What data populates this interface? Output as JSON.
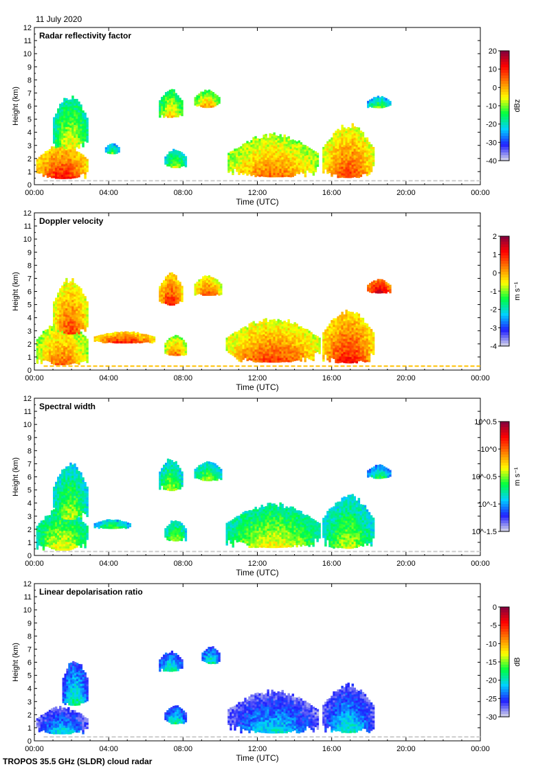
{
  "date": "11 July 2020",
  "footer": "TROPOS 35.5 GHz (SLDR) cloud radar",
  "chart_data": {
    "type": "heatmap",
    "xlabel": "Time (UTC)",
    "ylabel": "Height (km)",
    "xlim": [
      0,
      24
    ],
    "ylim": [
      0,
      12
    ],
    "x_ticks": [
      "00:00",
      "04:00",
      "08:00",
      "12:00",
      "16:00",
      "20:00",
      "00:00"
    ],
    "y_ticks": [
      "0",
      "1",
      "2",
      "3",
      "4",
      "5",
      "6",
      "7",
      "8",
      "9",
      "10",
      "11",
      "12"
    ],
    "panels": [
      {
        "title": "Radar reflectivity factor",
        "colorbar": {
          "unit": "dBz",
          "range": [
            -40,
            20
          ],
          "ticks": [
            "20",
            "10",
            "0",
            "-10",
            "-20",
            "-30",
            "-40"
          ]
        },
        "colors": [
          "#d8d8e8",
          "#2020ff",
          "#00d0ff",
          "#00ff40",
          "#ffff00",
          "#ff8000",
          "#ff0000",
          "#800040"
        ],
        "clouds": [
          {
            "t0": 0.1,
            "t1": 2.9,
            "h0": 0.3,
            "h1": 3.2,
            "v": 0.6
          },
          {
            "t0": 1.0,
            "t1": 2.9,
            "h0": 2.5,
            "h1": 7.0,
            "v": 0.35
          },
          {
            "t0": 3.8,
            "t1": 4.6,
            "h0": 2.3,
            "h1": 3.2,
            "v": 0.25
          },
          {
            "t0": 6.7,
            "t1": 8.0,
            "h0": 5.0,
            "h1": 7.4,
            "v": 0.4
          },
          {
            "t0": 7.0,
            "t1": 8.2,
            "h0": 1.2,
            "h1": 2.8,
            "v": 0.3
          },
          {
            "t0": 8.6,
            "t1": 10.0,
            "h0": 5.8,
            "h1": 7.3,
            "v": 0.45
          },
          {
            "t0": 10.4,
            "t1": 15.3,
            "h0": 0.4,
            "h1": 4.0,
            "v": 0.5
          },
          {
            "t0": 15.5,
            "t1": 18.3,
            "h0": 0.3,
            "h1": 4.8,
            "v": 0.55
          },
          {
            "t0": 17.9,
            "t1": 19.2,
            "h0": 5.8,
            "h1": 6.8,
            "v": 0.25
          }
        ],
        "ground_clutter": true
      },
      {
        "title": "Doppler velocity",
        "colorbar": {
          "unit": "m s⁻¹",
          "range": [
            -4,
            2
          ],
          "ticks": [
            "2",
            "1",
            "0",
            "-1",
            "-2",
            "-3",
            "-4"
          ]
        },
        "colors": [
          "#d8d8e8",
          "#2020ff",
          "#00d0ff",
          "#00ff40",
          "#ffff00",
          "#ff8000",
          "#ff0000",
          "#800040"
        ],
        "clouds": [
          {
            "t0": 0.1,
            "t1": 2.9,
            "h0": 0.2,
            "h1": 4.0,
            "v": 0.5
          },
          {
            "t0": 1.0,
            "t1": 2.9,
            "h0": 2.5,
            "h1": 7.2,
            "v": 0.55
          },
          {
            "t0": 3.2,
            "t1": 6.5,
            "h0": 2.0,
            "h1": 3.0,
            "v": 0.6
          },
          {
            "t0": 6.7,
            "t1": 8.0,
            "h0": 4.8,
            "h1": 7.5,
            "v": 0.6
          },
          {
            "t0": 7.0,
            "t1": 8.2,
            "h0": 1.0,
            "h1": 2.8,
            "v": 0.5
          },
          {
            "t0": 8.6,
            "t1": 10.1,
            "h0": 5.6,
            "h1": 7.3,
            "v": 0.55
          },
          {
            "t0": 10.3,
            "t1": 15.4,
            "h0": 0.4,
            "h1": 4.1,
            "v": 0.55
          },
          {
            "t0": 15.5,
            "t1": 18.3,
            "h0": 0.3,
            "h1": 4.8,
            "v": 0.6
          },
          {
            "t0": 17.9,
            "t1": 19.2,
            "h0": 5.8,
            "h1": 7.0,
            "v": 0.7
          }
        ],
        "ground_clutter": true
      },
      {
        "title": "Spectral width",
        "colorbar": {
          "unit": "m s⁻¹",
          "range": [
            -1.5,
            0.5
          ],
          "ticks": [
            "10^0.5",
            "10^0",
            "10^-0.5",
            "10^-1",
            "10^-1.5"
          ]
        },
        "colors": [
          "#d8d8e8",
          "#2020ff",
          "#00d0ff",
          "#00ff40",
          "#ffff00",
          "#ff8000",
          "#ff0000",
          "#800040"
        ],
        "clouds": [
          {
            "t0": 0.1,
            "t1": 2.9,
            "h0": 0.2,
            "h1": 3.8,
            "v": 0.35
          },
          {
            "t0": 1.0,
            "t1": 2.9,
            "h0": 2.5,
            "h1": 7.2,
            "v": 0.3
          },
          {
            "t0": 3.2,
            "t1": 5.2,
            "h0": 2.0,
            "h1": 2.8,
            "v": 0.25
          },
          {
            "t0": 6.7,
            "t1": 8.0,
            "h0": 4.8,
            "h1": 7.5,
            "v": 0.3
          },
          {
            "t0": 7.0,
            "t1": 8.2,
            "h0": 1.0,
            "h1": 2.8,
            "v": 0.3
          },
          {
            "t0": 8.6,
            "t1": 10.1,
            "h0": 5.6,
            "h1": 7.3,
            "v": 0.3
          },
          {
            "t0": 10.3,
            "t1": 15.4,
            "h0": 0.4,
            "h1": 4.1,
            "v": 0.35
          },
          {
            "t0": 15.5,
            "t1": 18.3,
            "h0": 0.3,
            "h1": 4.8,
            "v": 0.3
          },
          {
            "t0": 17.9,
            "t1": 19.2,
            "h0": 5.8,
            "h1": 7.0,
            "v": 0.2
          }
        ],
        "ground_clutter": true
      },
      {
        "title": "Linear depolarisation ratio",
        "colorbar": {
          "unit": "dB",
          "range": [
            -30,
            0
          ],
          "ticks": [
            "0",
            "-5",
            "-10",
            "-15",
            "-20",
            "-25",
            "-30"
          ]
        },
        "colors": [
          "#d8d8e8",
          "#2020ff",
          "#00d0ff",
          "#00ff40",
          "#ffff00",
          "#ff8000",
          "#ff0000",
          "#800040"
        ],
        "clouds": [
          {
            "t0": 0.1,
            "t1": 2.9,
            "h0": 0.4,
            "h1": 2.7,
            "v": 0.08
          },
          {
            "t0": 1.5,
            "t1": 2.9,
            "h0": 2.5,
            "h1": 6.4,
            "v": 0.15
          },
          {
            "t0": 6.7,
            "t1": 8.0,
            "h0": 5.2,
            "h1": 6.9,
            "v": 0.15
          },
          {
            "t0": 7.0,
            "t1": 8.2,
            "h0": 1.2,
            "h1": 2.8,
            "v": 0.15
          },
          {
            "t0": 9.0,
            "t1": 10.0,
            "h0": 5.8,
            "h1": 7.3,
            "v": 0.15
          },
          {
            "t0": 10.4,
            "t1": 15.3,
            "h0": 0.4,
            "h1": 4.0,
            "v": 0.08
          },
          {
            "t0": 15.5,
            "t1": 18.3,
            "h0": 0.4,
            "h1": 4.5,
            "v": 0.1
          }
        ],
        "ground_clutter": true
      }
    ]
  }
}
